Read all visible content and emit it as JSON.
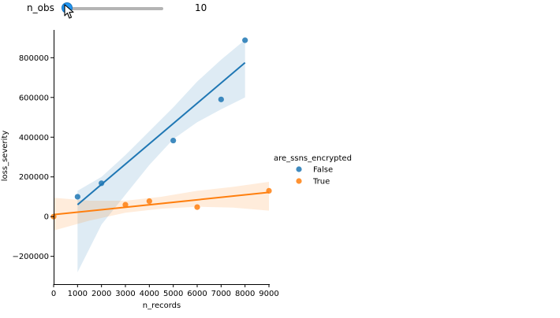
{
  "widget": {
    "label": "n_obs",
    "value": "10",
    "fraction": 0.0
  },
  "chart_data": {
    "type": "scatter",
    "xlabel": "n_records",
    "ylabel": "loss_severity",
    "xlim": [
      0,
      9000
    ],
    "ylim": [
      -340000,
      940000
    ],
    "xticks": [
      0,
      1000,
      2000,
      3000,
      4000,
      5000,
      6000,
      7000,
      8000,
      9000
    ],
    "xtick_labels": [
      "0",
      "1000",
      "2000",
      "3000",
      "4000",
      "5000",
      "6000",
      "7000",
      "8000",
      "9000"
    ],
    "yticks": [
      -200000,
      0,
      200000,
      400000,
      600000,
      800000
    ],
    "ytick_labels": [
      "−200000",
      "0",
      "200000",
      "400000",
      "600000",
      "800000"
    ],
    "legend_title": "are_ssns_encrypted",
    "legend_placement": "right",
    "grid": false,
    "series": [
      {
        "name": "False",
        "color": "#1f77b4",
        "points": [
          [
            1000,
            100000
          ],
          [
            2000,
            168000
          ],
          [
            5000,
            383000
          ],
          [
            7000,
            590000
          ],
          [
            8000,
            888000
          ]
        ],
        "fit": [
          [
            1000,
            60000
          ],
          [
            8000,
            775000
          ]
        ],
        "ci": {
          "x": [
            1000,
            2000,
            3000,
            4000,
            5000,
            6000,
            7000,
            8000
          ],
          "lower": [
            -280000,
            -40000,
            110000,
            260000,
            390000,
            475000,
            540000,
            600000
          ],
          "upper": [
            130000,
            200000,
            310000,
            430000,
            550000,
            680000,
            790000,
            890000
          ]
        }
      },
      {
        "name": "True",
        "color": "#ff7f0e",
        "points": [
          [
            0,
            0
          ],
          [
            3000,
            60000
          ],
          [
            4000,
            78000
          ],
          [
            6000,
            48000
          ],
          [
            9000,
            130000
          ]
        ],
        "fit": [
          [
            0,
            10000
          ],
          [
            9000,
            122000
          ]
        ],
        "ci": {
          "x": [
            0,
            1500,
            3000,
            4500,
            6000,
            7500,
            9000
          ],
          "lower": [
            -70000,
            -20000,
            20000,
            40000,
            50000,
            45000,
            30000
          ],
          "upper": [
            95000,
            80000,
            80000,
            100000,
            130000,
            150000,
            175000
          ]
        }
      }
    ]
  }
}
